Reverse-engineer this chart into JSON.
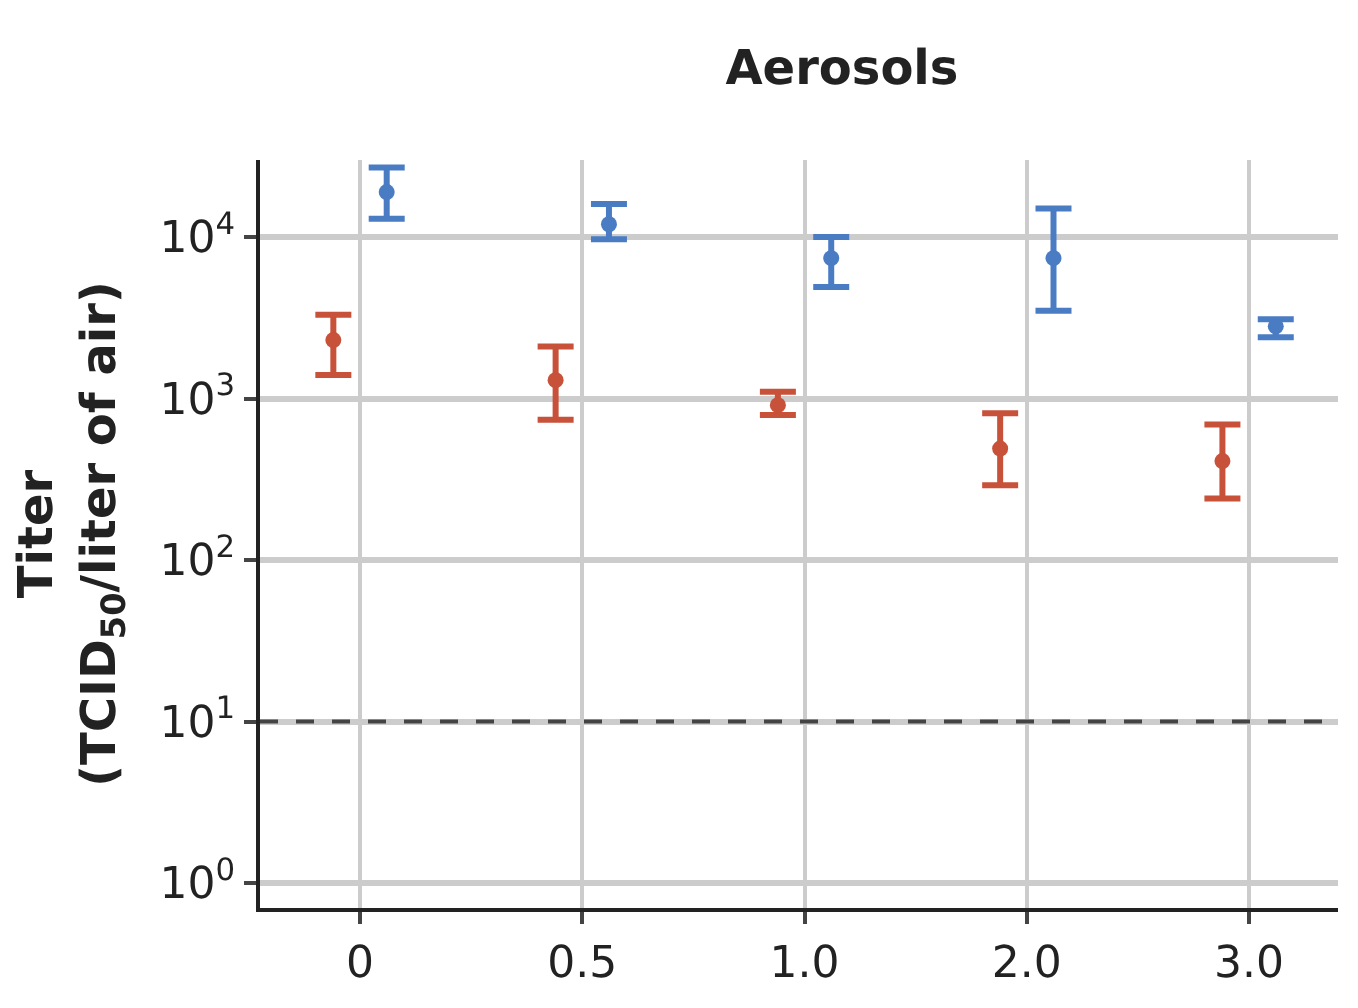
{
  "chart_data": {
    "type": "scatter",
    "title": "Aerosols",
    "ylabel": "Titer\n(TCID$_{50}$/liter of air)",
    "categories": [
      "0",
      "0.5",
      "1.0",
      "2.0",
      "3.0"
    ],
    "series": [
      {
        "color": "#c8513a",
        "values": [
          2300,
          1300,
          910,
          490,
          410
        ],
        "errors": [
          [
            1400,
            3300
          ],
          [
            740,
            2100
          ],
          [
            790,
            1100
          ],
          [
            290,
            810
          ],
          [
            240,
            690
          ]
        ]
      },
      {
        "color": "#4a7cc4",
        "values": [
          19000,
          12000,
          7400,
          7400,
          2800
        ],
        "errors": [
          [
            13000,
            27000
          ],
          [
            9700,
            16000
          ],
          [
            4900,
            10000
          ],
          [
            3500,
            15000
          ],
          [
            2400,
            3100
          ]
        ]
      }
    ],
    "log": "y",
    "ylim": [
      0.7,
      30000
    ],
    "yticks": [
      {
        "value": 1,
        "label": "10$^{0}$"
      },
      {
        "value": 10,
        "label": "10$^{1}$"
      },
      {
        "value": 100,
        "label": "10$^{2}$"
      },
      {
        "value": 1000,
        "label": "10$^{3}$"
      },
      {
        "value": 10000,
        "label": "10$^{4}$"
      }
    ],
    "ref_lines": [
      {
        "axis": "y",
        "value": 10,
        "color": "#444444",
        "line_style": "dashed"
      }
    ],
    "grid": true,
    "marker": "circle"
  }
}
